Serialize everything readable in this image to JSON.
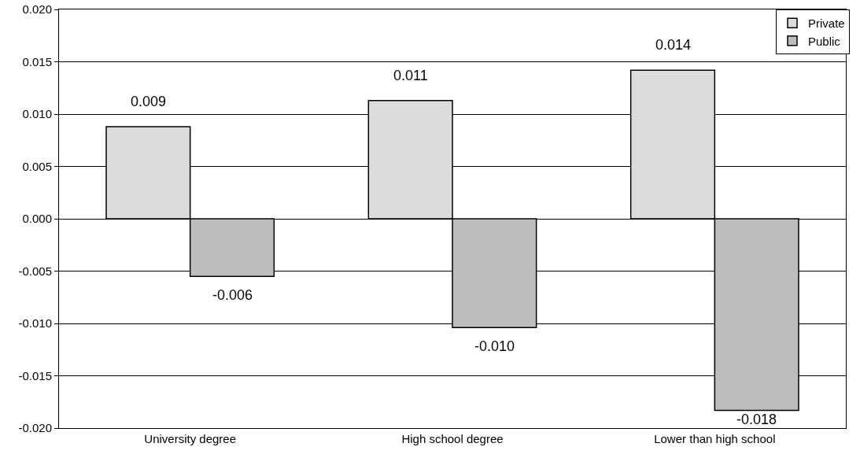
{
  "chart_data": {
    "type": "bar",
    "categories": [
      "University degree",
      "High school degree",
      "Lower than high school"
    ],
    "series": [
      {
        "name": "Private",
        "color": "#dcdcdc",
        "values": [
          0.0088,
          0.0113,
          0.0142
        ],
        "value_labels": [
          "0.009",
          "0.011",
          "0.014"
        ]
      },
      {
        "name": "Public",
        "color": "#bdbdbd",
        "values": [
          -0.0055,
          -0.0104,
          -0.0183
        ],
        "value_labels": [
          "-0.006",
          "-0.010",
          "-0.018"
        ]
      }
    ],
    "ylim": [
      -0.02,
      0.02
    ],
    "yticks": [
      {
        "value": -0.02,
        "label": "-0.020"
      },
      {
        "value": -0.015,
        "label": "-0.015"
      },
      {
        "value": -0.01,
        "label": "-0.010"
      },
      {
        "value": -0.005,
        "label": "-0.005"
      },
      {
        "value": 0,
        "label": "0.000"
      },
      {
        "value": 0.005,
        "label": "0.005"
      },
      {
        "value": 0.01,
        "label": "0.010"
      },
      {
        "value": 0.015,
        "label": "0.015"
      },
      {
        "value": 0.02,
        "label": "0.020"
      }
    ],
    "grid": "y",
    "legend": "top right"
  }
}
